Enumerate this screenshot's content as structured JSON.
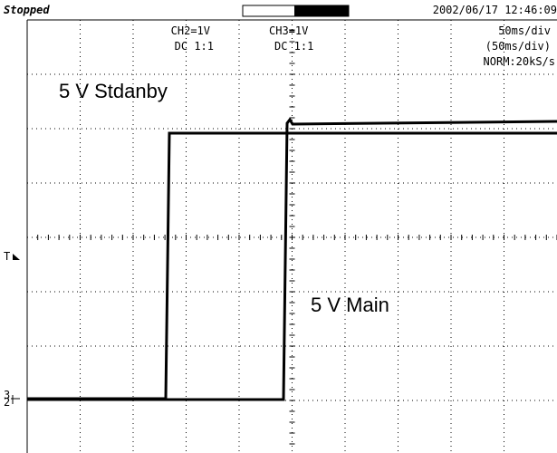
{
  "header": {
    "status": "Stopped",
    "datetime": "2002/06/17 12:46:09"
  },
  "channels": [
    {
      "setting": "CH2=1V",
      "coupling": "DC 1:1"
    },
    {
      "setting": "CH3=1V",
      "coupling": "DC 1:1"
    }
  ],
  "timebase": {
    "scale": "50ms/div",
    "zoom": "(50ms/div)",
    "mode": "NORM:20kS/s"
  },
  "annotations": [
    "5 V Stdanby",
    "5 V Main"
  ],
  "markers": {
    "trigger": "T",
    "ground": "3",
    "ground2": "2"
  }
}
